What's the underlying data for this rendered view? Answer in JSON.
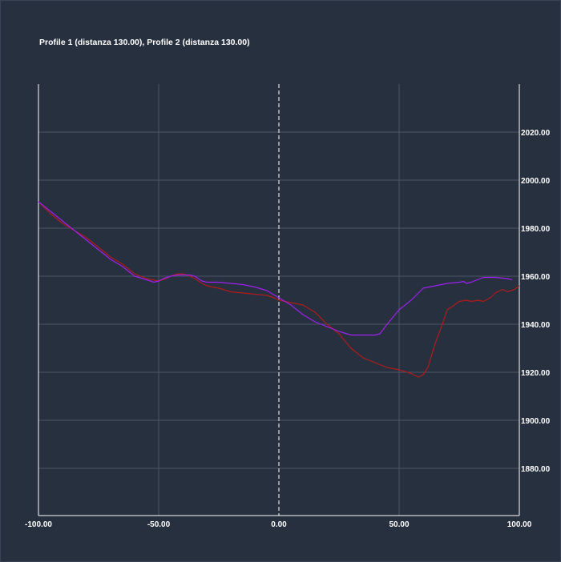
{
  "chart_data": {
    "type": "line",
    "title": "Profile 1 (distanza 130.00), Profile 2 (distanza 130.00)",
    "xlim": [
      -100,
      100
    ],
    "ylim": [
      1860,
      2040
    ],
    "x_ticks": [
      -100,
      -50,
      0,
      50,
      100
    ],
    "x_tick_labels": [
      "-100.00",
      "-50.00",
      "0.00",
      "50.00",
      "100.00"
    ],
    "y_ticks": [
      1880,
      1900,
      1920,
      1940,
      1960,
      1980,
      2000,
      2020
    ],
    "y_tick_labels": [
      "1880.00",
      "1900.00",
      "1920.00",
      "1940.00",
      "1960.00",
      "1980.00",
      "2000.00",
      "2020.00"
    ],
    "y_axis_side": "right",
    "grid": true,
    "center_line": {
      "x": 0,
      "style": "dashed"
    },
    "colors": {
      "background": "#27303f",
      "grid": "#4c5666",
      "axis": "#ffffff",
      "profile_1": "#b31b1b",
      "profile_2": "#a020f0"
    },
    "series": [
      {
        "color_key": "profile_1",
        "x": [
          -100,
          -95,
          -90,
          -85,
          -80,
          -75,
          -70,
          -65,
          -60,
          -55,
          -50,
          -47,
          -45,
          -42,
          -40,
          -37,
          -35,
          -32,
          -30,
          -25,
          -20,
          -15,
          -10,
          -5,
          -2,
          0,
          5,
          10,
          15,
          20,
          25,
          30,
          35,
          40,
          45,
          50,
          55,
          58,
          60,
          62,
          65,
          68,
          70,
          73,
          75,
          78,
          80,
          83,
          85,
          88,
          90,
          93,
          95,
          98,
          100
        ],
        "y": [
          1991,
          1986,
          1982,
          1979,
          1976,
          1972,
          1968,
          1965,
          1961,
          1959,
          1958,
          1959,
          1960,
          1961,
          1961,
          1960,
          1959,
          1957,
          1956,
          1955,
          1953.5,
          1953,
          1952.5,
          1952,
          1951,
          1950,
          1949,
          1948,
          1945,
          1940,
          1936,
          1930,
          1926,
          1924,
          1922,
          1921,
          1919.5,
          1918,
          1919,
          1922,
          1932,
          1940,
          1946,
          1948,
          1949.5,
          1950,
          1949.5,
          1950,
          1949.5,
          1951,
          1953,
          1954.5,
          1953.5,
          1954.5,
          1956
        ]
      },
      {
        "color_key": "profile_2",
        "x": [
          -100,
          -95,
          -90,
          -85,
          -80,
          -75,
          -70,
          -65,
          -60,
          -55,
          -52,
          -50,
          -48,
          -45,
          -42,
          -40,
          -37,
          -35,
          -32,
          -30,
          -25,
          -20,
          -15,
          -10,
          -5,
          0,
          5,
          10,
          15,
          20,
          25,
          30,
          35,
          40,
          42,
          45,
          50,
          55,
          60,
          65,
          70,
          75,
          77,
          78,
          80,
          85,
          90,
          95,
          97
        ],
        "y": [
          1991,
          1987,
          1983,
          1979,
          1975,
          1971,
          1967,
          1964,
          1960,
          1958.5,
          1957.5,
          1958,
          1959,
          1960,
          1960.5,
          1960.5,
          1960.5,
          1960,
          1958,
          1957.5,
          1957.5,
          1957,
          1956.5,
          1955.5,
          1954,
          1951,
          1948,
          1944,
          1941,
          1939,
          1937,
          1935.5,
          1935.5,
          1935.5,
          1936,
          1940,
          1946,
          1950,
          1955,
          1956,
          1957,
          1957.5,
          1957.8,
          1957,
          1957.5,
          1959.5,
          1959.5,
          1959,
          1958.5
        ]
      }
    ]
  }
}
